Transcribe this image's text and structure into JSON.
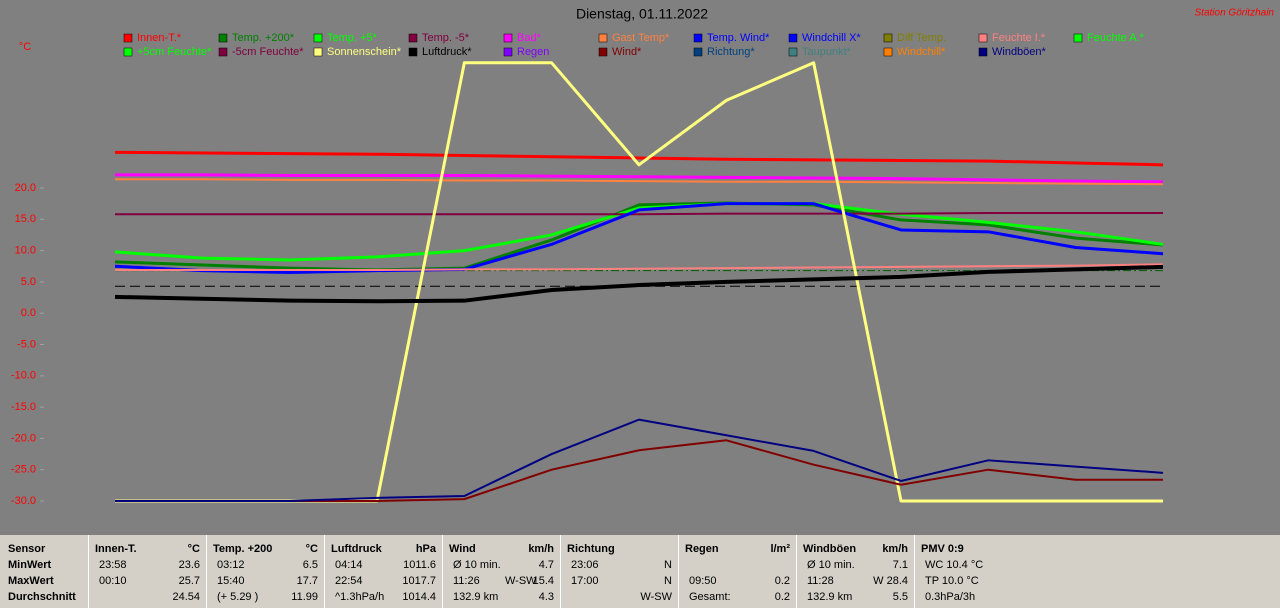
{
  "chart_data": {
    "type": "line",
    "title": "Dienstag, 01.11.2022",
    "station": "Station Göritzhain",
    "y_label": "°C",
    "xlim": [
      0,
      24
    ],
    "ylim": [
      -30,
      42
    ],
    "yticks": [
      {
        "value": 20,
        "label": "20.0"
      },
      {
        "value": 15,
        "label": "15.0"
      },
      {
        "value": 10,
        "label": "10.0"
      },
      {
        "value": 5,
        "label": "5.0"
      },
      {
        "value": 0,
        "label": "0.0"
      },
      {
        "value": -5,
        "label": "-5.0"
      },
      {
        "value": -10,
        "label": "-10.0"
      },
      {
        "value": -15,
        "label": "-15.0"
      },
      {
        "value": -20,
        "label": "-20.0"
      },
      {
        "value": -25,
        "label": "-25.0"
      },
      {
        "value": -30,
        "label": "-30.0"
      }
    ],
    "hlines": [
      4.3,
      6.8
    ],
    "x": [
      0,
      2,
      4,
      6,
      8,
      10,
      12,
      14,
      16,
      18,
      20,
      22,
      24
    ],
    "series": [
      {
        "name": "Innen-T.*",
        "color": "#ff0000",
        "width": 3,
        "values": [
          25.7,
          25.6,
          25.5,
          25.4,
          25.2,
          25.0,
          24.8,
          24.6,
          24.5,
          24.4,
          24.3,
          24.0,
          23.7
        ]
      },
      {
        "name": "Temp. +200*",
        "color": "#008000",
        "width": 3,
        "values": [
          8.2,
          7.7,
          7.2,
          6.9,
          7.2,
          11.7,
          17.3,
          17.6,
          17.3,
          14.9,
          14.1,
          12.0,
          10.9
        ]
      },
      {
        "name": "Temp. +5*",
        "color": "#00ff00",
        "width": 3,
        "values": [
          9.8,
          8.8,
          8.5,
          9.0,
          10.0,
          12.5,
          16.8,
          17.5,
          17.5,
          15.8,
          14.5,
          13.0,
          11.0
        ]
      },
      {
        "name": "Temp. -5*",
        "color": "#800040",
        "width": 2,
        "values": [
          15.8,
          15.8,
          15.8,
          15.8,
          15.8,
          15.8,
          15.8,
          15.9,
          15.9,
          15.9,
          16.0,
          16.0,
          16.0
        ]
      },
      {
        "name": "Bad*",
        "color": "#ff00ff",
        "width": 3,
        "values": [
          22.1,
          22.1,
          22.0,
          22.0,
          22.0,
          21.9,
          21.8,
          21.7,
          21.6,
          21.5,
          21.3,
          21.1,
          21.0
        ]
      },
      {
        "name": "Gast Temp*",
        "color": "#ff8040",
        "width": 2,
        "values": [
          21.4,
          21.4,
          21.3,
          21.3,
          21.2,
          21.2,
          21.1,
          21.0,
          21.0,
          20.9,
          20.8,
          20.7,
          20.6
        ]
      },
      {
        "name": "Temp. Wind*",
        "color": "#0000ff",
        "width": 3,
        "values": [
          7.5,
          6.8,
          6.5,
          6.8,
          7.0,
          11.0,
          16.5,
          17.5,
          17.5,
          13.3,
          13.0,
          10.5,
          9.5
        ]
      },
      {
        "name": "Windchill X*",
        "color": "#0000ff",
        "width": 1,
        "values": [
          null,
          null,
          null,
          null,
          null,
          null,
          null,
          null,
          null,
          null,
          null,
          null,
          null
        ]
      },
      {
        "name": "Diff Temp.",
        "color": "#808000",
        "width": 1,
        "values": [
          null,
          null,
          null,
          null,
          null,
          null,
          null,
          null,
          null,
          null,
          null,
          null,
          null
        ]
      },
      {
        "name": "Feuchte I.*",
        "color": "#ff8080",
        "width": 2,
        "values": [
          6.9,
          6.9,
          6.9,
          6.9,
          7.0,
          7.0,
          7.1,
          7.2,
          7.3,
          7.4,
          7.5,
          7.6,
          7.8
        ]
      },
      {
        "name": "Feuchte A.*",
        "color": "#00ff00",
        "width": 1,
        "values": [
          null,
          null,
          null,
          null,
          null,
          null,
          null,
          null,
          null,
          null,
          null,
          null,
          null
        ]
      },
      {
        "name": "+5cm Feuchte*",
        "color": "#00ff00",
        "width": 1,
        "values": [
          null,
          null,
          null,
          null,
          null,
          null,
          null,
          null,
          null,
          null,
          null,
          null,
          null
        ]
      },
      {
        "name": "-5cm Feuchte*",
        "color": "#800040",
        "width": 1,
        "values": [
          null,
          null,
          null,
          null,
          null,
          null,
          null,
          null,
          null,
          null,
          null,
          null,
          null
        ]
      },
      {
        "name": "Sonnenschein*",
        "color": "#ffff80",
        "width": 3,
        "values": [
          -30,
          -30,
          -30,
          -30,
          40,
          40,
          23.7,
          34,
          40,
          -30,
          -30,
          -30,
          -30
        ]
      },
      {
        "name": "Luftdruck*",
        "color": "#000000",
        "width": 4,
        "values": [
          2.6,
          2.3,
          2.0,
          1.9,
          2.0,
          3.7,
          4.5,
          5.0,
          5.4,
          5.8,
          6.6,
          7.0,
          7.4
        ]
      },
      {
        "name": "Regen",
        "color": "#8000ff",
        "width": 1,
        "values": [
          null,
          null,
          null,
          null,
          null,
          null,
          null,
          null,
          null,
          null,
          null,
          null,
          null
        ]
      },
      {
        "name": "Wind*",
        "color": "#800000",
        "width": 2,
        "values": [
          -30,
          -30,
          -30,
          -30,
          -29.7,
          -25.0,
          -21.9,
          -20.3,
          -24.2,
          -27.4,
          -25.0,
          -26.6,
          -26.6
        ]
      },
      {
        "name": "Richtung*",
        "color": "#004080",
        "width": 1,
        "values": [
          null,
          null,
          null,
          null,
          null,
          null,
          null,
          null,
          null,
          null,
          null,
          null,
          null
        ]
      },
      {
        "name": "Taupunkt*",
        "color": "#408080",
        "width": 1,
        "values": [
          null,
          null,
          null,
          null,
          null,
          null,
          null,
          null,
          null,
          null,
          null,
          null,
          null
        ]
      },
      {
        "name": "Windchill*",
        "color": "#ff8000",
        "width": 1,
        "values": [
          null,
          null,
          null,
          null,
          null,
          null,
          null,
          null,
          null,
          null,
          null,
          null,
          null
        ]
      },
      {
        "name": "Windböen*",
        "color": "#000080",
        "width": 2,
        "values": [
          -30,
          -30,
          -30,
          -29.5,
          -29.2,
          -22.5,
          -17.0,
          -19.5,
          -22.0,
          -26.8,
          -23.5,
          -24.5,
          -25.5
        ]
      }
    ]
  },
  "stats": {
    "labels": [
      "Sensor",
      "MinWert",
      "MaxWert",
      "Durchschnitt"
    ],
    "blocks": [
      {
        "name": "Innen-T.",
        "unit": "°C",
        "rows": [
          {
            "l": "23:58",
            "r": "23.6"
          },
          {
            "l": "00:10",
            "r": "25.7"
          },
          {
            "r": "24.54"
          }
        ]
      },
      {
        "name": "Temp. +200",
        "unit": "°C",
        "rows": [
          {
            "l": "03:12",
            "r": "6.5"
          },
          {
            "l": "15:40",
            "r": "17.7"
          },
          {
            "l": "(+ 5.29 )",
            "r": "11.99"
          }
        ]
      },
      {
        "name": "Luftdruck",
        "unit": "hPa",
        "rows": [
          {
            "l": "04:14",
            "r": "1011.6"
          },
          {
            "l": "22:54",
            "r": "1017.7"
          },
          {
            "l": "^1.3hPa/h",
            "r": "1014.4"
          }
        ]
      },
      {
        "name": "Wind",
        "unit": "km/h",
        "rows": [
          {
            "l": "Ø 10 min.",
            "r": "4.7"
          },
          {
            "l": "11:26",
            "m": "W-SW",
            "r": "15.4"
          },
          {
            "l": "132.9 km",
            "r": "4.3"
          }
        ]
      },
      {
        "name": "Richtung",
        "rows": [
          {
            "l": "23:06",
            "r": "N"
          },
          {
            "l": "17:00",
            "r": "N"
          },
          {
            "r": "W-SW"
          }
        ]
      },
      {
        "name": "Regen",
        "unit": "l/m²",
        "rows": [
          {},
          {
            "l": "09:50",
            "r": "0.2"
          },
          {
            "l": "Gesamt:",
            "r": "0.2"
          }
        ]
      },
      {
        "name": "Windböen",
        "unit": "km/h",
        "rows": [
          {
            "l": "Ø 10 min.",
            "r": "7.1"
          },
          {
            "l": "11:28",
            "r": "W 28.4"
          },
          {
            "l": "132.9 km",
            "r": "5.5"
          }
        ]
      },
      {
        "name": "PMV 0:9",
        "rows": [
          {
            "l": "WC 10.4 °C"
          },
          {
            "l": "TP 10.0 °C"
          },
          {
            "l": "0.3hPa/3h"
          }
        ]
      }
    ]
  }
}
